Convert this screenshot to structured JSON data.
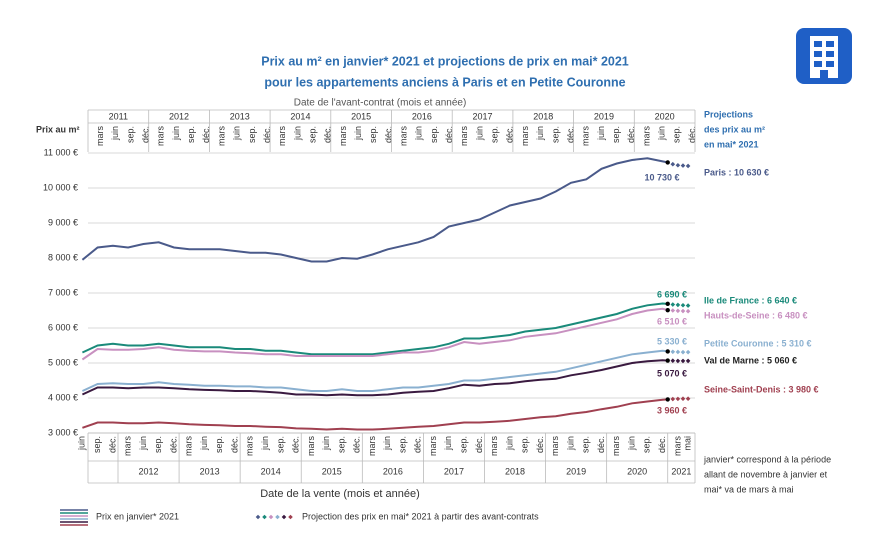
{
  "chart_data": {
    "type": "line",
    "title": [
      "Prix au m² en janvier* 2021 et projections de prix en mai* 2021",
      "pour les appartements anciens à Paris et en Petite Couronne"
    ],
    "top_axis": {
      "label": "Date de l'avant-contrat (mois et année)",
      "years": [
        "2011",
        "2012",
        "2013",
        "2014",
        "2015",
        "2016",
        "2017",
        "2018",
        "2019",
        "2020"
      ],
      "months": [
        "mars",
        "juin",
        "sep.",
        "déc."
      ]
    },
    "bottom_axis": {
      "label": "Date de la vente (mois et année)",
      "years": [
        "2012",
        "2013",
        "2014",
        "2015",
        "2016",
        "2017",
        "2018",
        "2019",
        "2020",
        "2021"
      ],
      "months": [
        "mars",
        "juin",
        "sep.",
        "déc."
      ],
      "last_months": [
        "mars",
        "mai"
      ]
    },
    "y_label": "Prix au m²",
    "projection_header": [
      "Projections",
      "des prix au m²",
      "en mai* 2021"
    ],
    "note": [
      "janvier* correspond à la période",
      "allant de novembre à janvier et",
      "mai* va de mars à mai"
    ],
    "legend": {
      "line": "Prix en janvier* 2021",
      "projection": "Projection des prix en mai* 2021 à partir des avant-contrats"
    },
    "ylim": [
      3000,
      11000
    ],
    "yticks": [
      {
        "value": 3000,
        "label": "3 000 €"
      },
      {
        "value": 4000,
        "label": "4 000 €"
      },
      {
        "value": 5000,
        "label": "5 000 €"
      },
      {
        "value": 6000,
        "label": "6 000 €"
      },
      {
        "value": 7000,
        "label": "7 000 €"
      },
      {
        "value": 8000,
        "label": "8 000 €"
      },
      {
        "value": 9000,
        "label": "9 000 €"
      },
      {
        "value": 10000,
        "label": "10 000 €"
      },
      {
        "value": 11000,
        "label": "11 000 €"
      }
    ],
    "grid": true,
    "x": [
      "2011-06",
      "2011-09",
      "2011-12",
      "2012-03",
      "2012-06",
      "2012-09",
      "2012-12",
      "2013-03",
      "2013-06",
      "2013-09",
      "2013-12",
      "2014-03",
      "2014-06",
      "2014-09",
      "2014-12",
      "2015-03",
      "2015-06",
      "2015-09",
      "2015-12",
      "2016-03",
      "2016-06",
      "2016-09",
      "2016-12",
      "2017-03",
      "2017-06",
      "2017-09",
      "2017-12",
      "2018-03",
      "2018-06",
      "2018-09",
      "2018-12",
      "2019-03",
      "2019-06",
      "2019-09",
      "2019-12",
      "2020-03",
      "2020-06",
      "2020-09",
      "2020-12",
      "2021-01"
    ],
    "projection_x": [
      "2021-02",
      "2021-03",
      "2021-04",
      "2021-05"
    ],
    "series": [
      {
        "color": "#4a5a8a",
        "values": [
          7950,
          8300,
          8350,
          8300,
          8400,
          8450,
          8300,
          8250,
          8250,
          8250,
          8200,
          8150,
          8150,
          8100,
          8000,
          7900,
          7900,
          8000,
          7980,
          8100,
          8250,
          8350,
          8450,
          8600,
          8900,
          9000,
          9100,
          9300,
          9500,
          9600,
          9700,
          9900,
          10150,
          10250,
          10550,
          10700,
          10800,
          10850,
          10760,
          10730
        ],
        "value_label": "10 730 €",
        "projection": [
          10680,
          10650,
          10640,
          10630
        ],
        "projection_label": "Paris : 10 630 €"
      },
      {
        "color": "#1a8a7a",
        "values": [
          5300,
          5500,
          5550,
          5500,
          5500,
          5550,
          5500,
          5450,
          5450,
          5450,
          5400,
          5400,
          5350,
          5350,
          5300,
          5250,
          5250,
          5250,
          5250,
          5250,
          5300,
          5350,
          5400,
          5450,
          5550,
          5700,
          5700,
          5750,
          5800,
          5900,
          5950,
          6000,
          6100,
          6200,
          6300,
          6400,
          6550,
          6650,
          6700,
          6690
        ],
        "value_label": "6 690 €",
        "projection": [
          6670,
          6660,
          6650,
          6640
        ],
        "projection_label": "Ile de France : 6 640 €"
      },
      {
        "color": "#c890c0",
        "values": [
          5100,
          5400,
          5380,
          5380,
          5400,
          5450,
          5380,
          5350,
          5330,
          5330,
          5300,
          5280,
          5250,
          5250,
          5200,
          5200,
          5200,
          5200,
          5200,
          5200,
          5250,
          5300,
          5300,
          5350,
          5450,
          5600,
          5550,
          5600,
          5650,
          5750,
          5800,
          5850,
          5950,
          6050,
          6150,
          6250,
          6400,
          6500,
          6550,
          6510
        ],
        "value_label": "6 510 €",
        "projection": [
          6500,
          6490,
          6485,
          6480
        ],
        "projection_label": "Hauts-de-Seine : 6 480 €"
      },
      {
        "color": "#8ab0d0",
        "values": [
          4200,
          4400,
          4420,
          4400,
          4400,
          4450,
          4400,
          4380,
          4350,
          4350,
          4330,
          4330,
          4300,
          4300,
          4250,
          4200,
          4200,
          4250,
          4200,
          4200,
          4250,
          4300,
          4300,
          4350,
          4400,
          4500,
          4500,
          4550,
          4600,
          4650,
          4700,
          4750,
          4850,
          4950,
          5050,
          5150,
          5250,
          5300,
          5350,
          5330
        ],
        "value_label": "5 330 €",
        "projection": [
          5320,
          5315,
          5310,
          5310
        ],
        "projection_label": "Petite Couronne : 5 310 €"
      },
      {
        "color": "#3a1a40",
        "values": [
          4100,
          4300,
          4300,
          4280,
          4300,
          4300,
          4280,
          4250,
          4230,
          4220,
          4200,
          4200,
          4180,
          4150,
          4100,
          4100,
          4080,
          4100,
          4080,
          4080,
          4100,
          4150,
          4180,
          4200,
          4280,
          4380,
          4350,
          4400,
          4420,
          4480,
          4520,
          4550,
          4650,
          4720,
          4800,
          4900,
          5000,
          5050,
          5080,
          5070
        ],
        "value_label": "5 070 €",
        "projection": [
          5065,
          5060,
          5060,
          5060
        ],
        "projection_label": "Val de Marne : 5 060 €"
      },
      {
        "color": "#a04050",
        "values": [
          3150,
          3300,
          3300,
          3280,
          3280,
          3300,
          3280,
          3250,
          3230,
          3220,
          3200,
          3200,
          3180,
          3170,
          3130,
          3120,
          3100,
          3120,
          3100,
          3100,
          3120,
          3150,
          3180,
          3200,
          3250,
          3300,
          3300,
          3320,
          3350,
          3400,
          3450,
          3480,
          3550,
          3600,
          3680,
          3750,
          3850,
          3900,
          3950,
          3960
        ],
        "value_label": "3 960 €",
        "projection": [
          3970,
          3975,
          3980,
          3980
        ],
        "projection_label": "Seine-Saint-Denis : 3 980 €"
      }
    ]
  }
}
